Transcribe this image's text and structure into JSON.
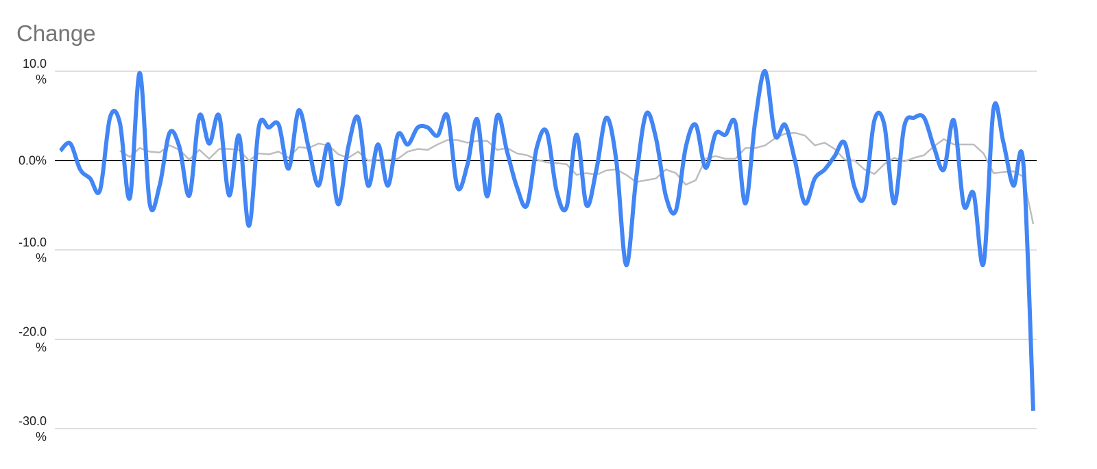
{
  "chart_data": {
    "type": "line",
    "title": "Change",
    "xlabel": "",
    "ylabel": "",
    "ylim": [
      -30,
      10
    ],
    "yticks": [
      {
        "value": 10,
        "label": "10.0",
        "unit": "%"
      },
      {
        "value": 0,
        "label": "0.0%",
        "unit": ""
      },
      {
        "value": -10,
        "label": "-10.0",
        "unit": "%"
      },
      {
        "value": -20,
        "label": "-20.0",
        "unit": "%"
      },
      {
        "value": -30,
        "label": "-30.0",
        "unit": "%"
      }
    ],
    "grid": true,
    "zero_line": true,
    "legend": "none",
    "colors": {
      "series": "#4285F4",
      "average": "#BDBDBD",
      "grid": "#CCCCCC",
      "zero": "#000000",
      "title": "#757575"
    },
    "series": [
      {
        "style": "smooth",
        "start_index": 0,
        "values": [
          1.1,
          1.9,
          -1.0,
          -2.0,
          -3.3,
          4.8,
          4.2,
          -4.2,
          9.8,
          -4.8,
          -2.8,
          3.1,
          1.5,
          -3.9,
          5.0,
          1.9,
          5.0,
          -3.9,
          2.8,
          -7.3,
          3.8,
          3.7,
          4.0,
          -0.9,
          5.6,
          1.5,
          -2.8,
          1.8,
          -4.9,
          1.5,
          4.8,
          -2.8,
          1.8,
          -2.8,
          2.9,
          1.8,
          3.7,
          3.7,
          2.8,
          5.0,
          -3.0,
          -0.5,
          4.6,
          -4.0,
          5.0,
          1.0,
          -3.0,
          -5.0,
          1.5,
          3.2,
          -3.5,
          -5.2,
          2.9,
          -5.0,
          -1.0,
          4.8,
          0.0,
          -11.7,
          -2.0,
          5.2,
          2.5,
          -4.0,
          -5.6,
          1.5,
          4.0,
          -0.8,
          3.0,
          2.9,
          4.2,
          -4.8,
          4.5,
          10.0,
          2.8,
          4.0,
          0.0,
          -4.8,
          -2.0,
          -1.0,
          0.5,
          2.0,
          -3.0,
          -4.0,
          4.5,
          4.0,
          -4.8,
          3.8,
          4.8,
          4.8,
          1.5,
          -1.0,
          4.5,
          -5.0,
          -3.7,
          -11.5,
          5.8,
          2.0,
          -2.8,
          -0.3,
          -28.0
        ]
      },
      {
        "style": "straight",
        "start_index": 6,
        "values": [
          1.1,
          0.4,
          1.4,
          1.0,
          0.9,
          1.7,
          1.2,
          0.1,
          1.2,
          0.2,
          1.3,
          1.3,
          1.2,
          0.0,
          0.8,
          0.7,
          1.0,
          0.3,
          1.5,
          1.4,
          1.9,
          1.7,
          0.7,
          0.3,
          1.0,
          0.0,
          0.1,
          0.1,
          0.2,
          1.0,
          1.3,
          1.2,
          1.8,
          2.3,
          2.3,
          2.0,
          2.2,
          2.2,
          1.2,
          1.4,
          0.8,
          0.6,
          0.1,
          -0.2,
          -0.3,
          -0.4,
          -1.6,
          -1.4,
          -1.6,
          -1.1,
          -1.0,
          -1.6,
          -2.4,
          -2.2,
          -2.0,
          -1.0,
          -1.4,
          -2.7,
          -2.2,
          0.2,
          0.5,
          0.2,
          0.2,
          1.4,
          1.4,
          1.7,
          2.5,
          3.0,
          3.1,
          2.8,
          1.7,
          2.0,
          1.3,
          0.1,
          0.0,
          -1.0,
          -1.5,
          -0.4,
          0.3,
          -0.1,
          0.3,
          0.6,
          1.6,
          2.4,
          1.8,
          1.8,
          1.8,
          0.8,
          -1.4,
          -1.3,
          -1.2,
          -1.8,
          -7.1
        ]
      }
    ]
  }
}
